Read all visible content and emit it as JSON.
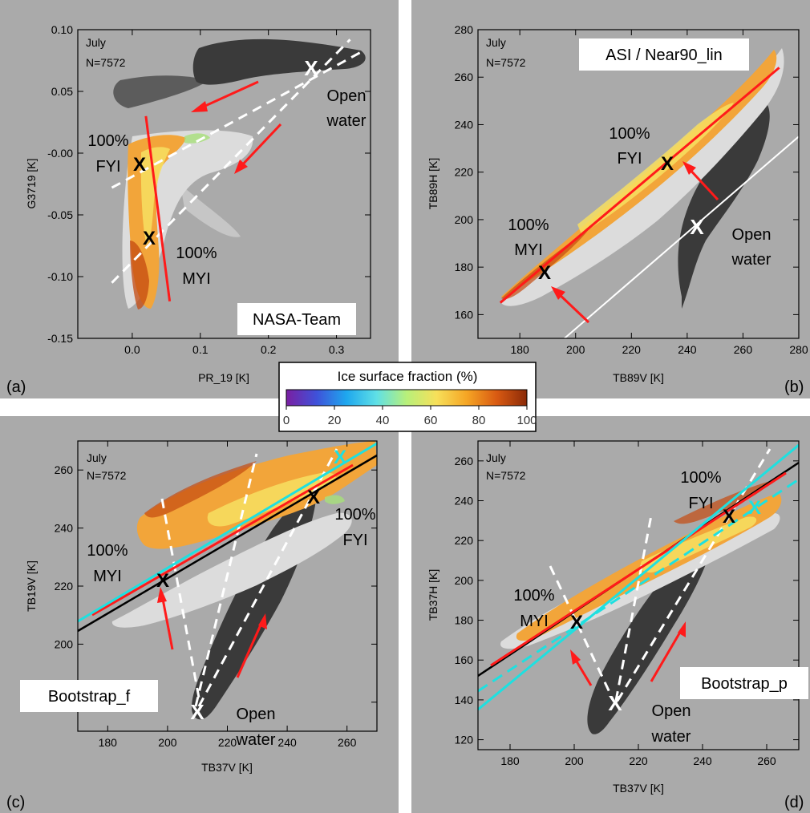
{
  "figure": {
    "colorbar": {
      "title": "Ice surface fraction (%)",
      "ticks": [
        "0",
        "20",
        "40",
        "60",
        "80",
        "100"
      ],
      "stops": [
        "#7a1fa2",
        "#3f51d9",
        "#1ea7ee",
        "#5fe0e6",
        "#b8f07a",
        "#f7e05a",
        "#f5a524",
        "#d95a12",
        "#8b2a08"
      ]
    },
    "colors": {
      "panel_bg": "#aaaaaa",
      "open_water_cloud": "#3a3a3a",
      "ice_cloud": "#dcdcdc",
      "tie_line_red": "#ff1a1a",
      "tie_line_cyan": "#1ee0e0",
      "tie_line_black": "#000000",
      "dashed_white": "#ffffff"
    }
  },
  "chart_data": [
    {
      "panel_label": "(a)",
      "type": "scatter",
      "month": "July",
      "n_text": "N=7572",
      "method_label": "NASA-Team",
      "xlabel": "PR_19 [K]",
      "ylabel": "G3719 [K]",
      "xlim": [
        -0.08,
        0.35
      ],
      "ylim": [
        -0.15,
        0.1
      ],
      "xticks": [
        "0.0",
        "0.1",
        "0.2",
        "0.3"
      ],
      "yticks": [
        "-0.15",
        "-0.10",
        "-0.05",
        "-0.00",
        "0.05",
        "0.10"
      ],
      "tie_points": [
        {
          "label": "Open water",
          "lines": [
            "Open",
            "water"
          ],
          "x": 0.26,
          "y": 0.068
        },
        {
          "label": "100% FYI",
          "lines": [
            "100%",
            "FYI"
          ],
          "x": 0.028,
          "y": -0.01
        },
        {
          "label": "100% MYI",
          "lines": [
            "100%",
            "MYI"
          ],
          "x": 0.04,
          "y": -0.069
        }
      ],
      "ice_line": [
        [
          0.02,
          0.03
        ],
        [
          0.055,
          -0.12
        ]
      ],
      "dashed_lines": [
        [
          [
            -0.03,
            -0.028
          ],
          [
            0.34,
            0.083
          ]
        ],
        [
          [
            -0.03,
            -0.105
          ],
          [
            0.32,
            0.092
          ]
        ]
      ]
    },
    {
      "panel_label": "(b)",
      "type": "scatter",
      "month": "July",
      "n_text": "N=7572",
      "method_label": "ASI / Near90_lin",
      "xlabel": "TB89V [K]",
      "ylabel": "TB89H [K]",
      "xlim": [
        165,
        280
      ],
      "ylim": [
        150,
        280
      ],
      "xticks": [
        "180",
        "200",
        "220",
        "240",
        "260",
        "280"
      ],
      "yticks": [
        "160",
        "180",
        "200",
        "220",
        "240",
        "260",
        "280"
      ],
      "tie_points": [
        {
          "label": "100% FYI",
          "lines": [
            "100%",
            "FYI"
          ],
          "x": 232,
          "y": 224
        },
        {
          "label": "100% MYI",
          "lines": [
            "100%",
            "MYI"
          ],
          "x": 188,
          "y": 180
        },
        {
          "label": "Open water",
          "lines": [
            "Open",
            "water"
          ],
          "x": 243,
          "y": 198
        }
      ],
      "ice_line": [
        [
          173,
          165
        ],
        [
          273,
          264
        ]
      ],
      "ow_line": [
        [
          196,
          150
        ],
        [
          280,
          235
        ]
      ]
    },
    {
      "panel_label": "(c)",
      "type": "scatter",
      "month": "July",
      "n_text": "N=7572",
      "method_label": "Bootstrap_f",
      "xlabel": "TB37V [K]",
      "ylabel": "TB19V [K]",
      "xlim": [
        170,
        270
      ],
      "ylim": [
        170,
        270
      ],
      "xticks": [
        "180",
        "200",
        "220",
        "240",
        "260"
      ],
      "yticks": [
        "180",
        "200",
        "220",
        "240",
        "260"
      ],
      "tie_points": [
        {
          "label": "100% MYI",
          "lines": [
            "100%",
            "MYI"
          ],
          "x": 198,
          "y": 227
        },
        {
          "label": "100% FYI",
          "lines": [
            "100%",
            "FYI"
          ],
          "x": 248,
          "y": 253
        },
        {
          "label": "Open water",
          "lines": [
            "Open",
            "water"
          ],
          "x": 210,
          "y": 185
        }
      ],
      "extra_cyan_tie": {
        "x": 257,
        "y": 266
      }
    },
    {
      "panel_label": "(d)",
      "type": "scatter",
      "month": "July",
      "n_text": "N=7572",
      "method_label": "Bootstrap_p",
      "xlabel": "TB37V [K]",
      "ylabel": "TB37H [K]",
      "xlim": [
        170,
        270
      ],
      "ylim": [
        115,
        270
      ],
      "xticks": [
        "180",
        "200",
        "220",
        "240",
        "260"
      ],
      "yticks": [
        "120",
        "140",
        "160",
        "180",
        "200",
        "220",
        "240",
        "260"
      ],
      "tie_points": [
        {
          "label": "100% MYI",
          "lines": [
            "100%",
            "MYI"
          ],
          "x": 198,
          "y": 183
        },
        {
          "label": "100% FYI",
          "lines": [
            "100%",
            "FYI"
          ],
          "x": 247,
          "y": 236
        },
        {
          "label": "Open water",
          "lines": [
            "Open",
            "water"
          ],
          "x": 210,
          "y": 146
        }
      ],
      "extra_cyan_tie": {
        "x": 256,
        "y": 238
      }
    }
  ]
}
